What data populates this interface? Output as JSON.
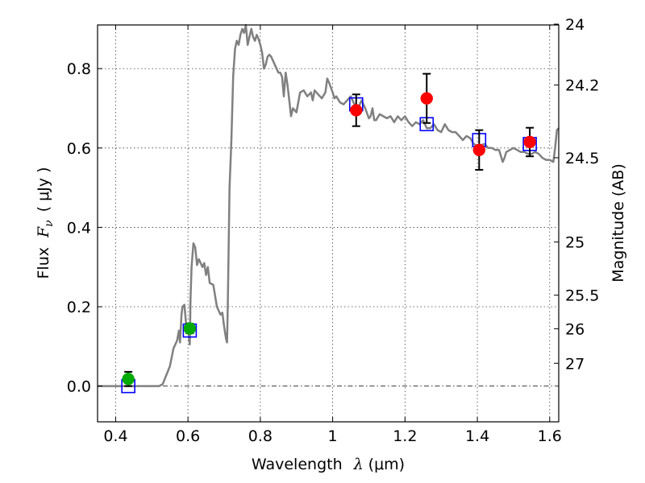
{
  "chart_data": {
    "type": "scatter",
    "title": "",
    "xlabel": {
      "prefix": "Wavelength",
      "symbol": "λ",
      "unit": "(μm)"
    },
    "ylabel": {
      "prefix": "Flux",
      "symbol": "F",
      "subscript": "ν",
      "unit": "( μJy )"
    },
    "y2label": "Magnitude (AB)",
    "xlim": [
      0.35,
      1.625
    ],
    "ylim": [
      -0.09,
      0.91
    ],
    "grid": true,
    "x_ticks": [
      {
        "value": 0.4,
        "label": "0.4"
      },
      {
        "value": 0.6,
        "label": "0.6"
      },
      {
        "value": 0.8,
        "label": "0.8"
      },
      {
        "value": 1.0,
        "label": "1"
      },
      {
        "value": 1.2,
        "label": "1.2"
      },
      {
        "value": 1.4,
        "label": "1.4"
      },
      {
        "value": 1.6,
        "label": "1.6"
      }
    ],
    "y_ticks": [
      {
        "value": 0.0,
        "label": "0.0"
      },
      {
        "value": 0.2,
        "label": "0.2"
      },
      {
        "value": 0.4,
        "label": "0.4"
      },
      {
        "value": 0.6,
        "label": "0.6"
      },
      {
        "value": 0.8,
        "label": "0.8"
      }
    ],
    "y2_ticks": [
      {
        "value": 24,
        "label": "24"
      },
      {
        "value": 24.2,
        "label": "24.2"
      },
      {
        "value": 24.5,
        "label": "24.5"
      },
      {
        "value": 25,
        "label": "25"
      },
      {
        "value": 25.5,
        "label": "25.5"
      },
      {
        "value": 26,
        "label": "26"
      },
      {
        "value": 27,
        "label": "27"
      }
    ],
    "series": [
      {
        "kind": "line",
        "color": "#808080",
        "points": [
          [
            0.35,
            0.0
          ],
          [
            0.52,
            0.0
          ],
          [
            0.53,
            0.005
          ],
          [
            0.55,
            0.05
          ],
          [
            0.56,
            0.095
          ],
          [
            0.57,
            0.115
          ],
          [
            0.575,
            0.14
          ],
          [
            0.578,
            0.11
          ],
          [
            0.582,
            0.18
          ],
          [
            0.585,
            0.2
          ],
          [
            0.59,
            0.205
          ],
          [
            0.595,
            0.155
          ],
          [
            0.6,
            0.15
          ],
          [
            0.603,
            0.12
          ],
          [
            0.605,
            0.105
          ],
          [
            0.607,
            0.22
          ],
          [
            0.61,
            0.3
          ],
          [
            0.615,
            0.36
          ],
          [
            0.62,
            0.35
          ],
          [
            0.625,
            0.305
          ],
          [
            0.63,
            0.32
          ],
          [
            0.64,
            0.3
          ],
          [
            0.645,
            0.31
          ],
          [
            0.65,
            0.28
          ],
          [
            0.655,
            0.3
          ],
          [
            0.66,
            0.26
          ],
          [
            0.67,
            0.255
          ],
          [
            0.68,
            0.2
          ],
          [
            0.69,
            0.18
          ],
          [
            0.695,
            0.185
          ],
          [
            0.7,
            0.15
          ],
          [
            0.705,
            0.12
          ],
          [
            0.708,
            0.11
          ],
          [
            0.71,
            0.2
          ],
          [
            0.715,
            0.5
          ],
          [
            0.72,
            0.62
          ],
          [
            0.725,
            0.78
          ],
          [
            0.73,
            0.85
          ],
          [
            0.735,
            0.87
          ],
          [
            0.74,
            0.86
          ],
          [
            0.745,
            0.885
          ],
          [
            0.75,
            0.9
          ],
          [
            0.755,
            0.89
          ],
          [
            0.76,
            0.91
          ],
          [
            0.765,
            0.86
          ],
          [
            0.77,
            0.88
          ],
          [
            0.775,
            0.9
          ],
          [
            0.78,
            0.88
          ],
          [
            0.785,
            0.87
          ],
          [
            0.79,
            0.885
          ],
          [
            0.795,
            0.875
          ],
          [
            0.8,
            0.86
          ],
          [
            0.805,
            0.84
          ],
          [
            0.81,
            0.8
          ],
          [
            0.815,
            0.81
          ],
          [
            0.82,
            0.83
          ],
          [
            0.825,
            0.835
          ],
          [
            0.83,
            0.83
          ],
          [
            0.84,
            0.81
          ],
          [
            0.85,
            0.79
          ],
          [
            0.855,
            0.79
          ],
          [
            0.86,
            0.78
          ],
          [
            0.865,
            0.73
          ],
          [
            0.87,
            0.79
          ],
          [
            0.875,
            0.76
          ],
          [
            0.88,
            0.72
          ],
          [
            0.885,
            0.68
          ],
          [
            0.89,
            0.7
          ],
          [
            0.9,
            0.69
          ],
          [
            0.91,
            0.74
          ],
          [
            0.92,
            0.745
          ],
          [
            0.93,
            0.73
          ],
          [
            0.94,
            0.74
          ],
          [
            0.945,
            0.72
          ],
          [
            0.95,
            0.745
          ],
          [
            0.96,
            0.735
          ],
          [
            0.97,
            0.725
          ],
          [
            0.98,
            0.74
          ],
          [
            0.985,
            0.775
          ],
          [
            0.99,
            0.765
          ],
          [
            1.0,
            0.74
          ],
          [
            1.005,
            0.725
          ],
          [
            1.01,
            0.73
          ],
          [
            1.02,
            0.715
          ],
          [
            1.03,
            0.71
          ],
          [
            1.04,
            0.72
          ],
          [
            1.05,
            0.73
          ],
          [
            1.06,
            0.71
          ],
          [
            1.065,
            0.695
          ],
          [
            1.07,
            0.7
          ],
          [
            1.08,
            0.72
          ],
          [
            1.09,
            0.7
          ],
          [
            1.1,
            0.675
          ],
          [
            1.105,
            0.68
          ],
          [
            1.11,
            0.7
          ],
          [
            1.115,
            0.67
          ],
          [
            1.12,
            0.67
          ],
          [
            1.13,
            0.685
          ],
          [
            1.14,
            0.68
          ],
          [
            1.15,
            0.675
          ],
          [
            1.16,
            0.68
          ],
          [
            1.17,
            0.665
          ],
          [
            1.18,
            0.68
          ],
          [
            1.19,
            0.67
          ],
          [
            1.2,
            0.68
          ],
          [
            1.21,
            0.665
          ],
          [
            1.22,
            0.655
          ],
          [
            1.23,
            0.665
          ],
          [
            1.24,
            0.66
          ],
          [
            1.25,
            0.67
          ],
          [
            1.26,
            0.65
          ],
          [
            1.27,
            0.65
          ],
          [
            1.28,
            0.66
          ],
          [
            1.29,
            0.645
          ],
          [
            1.3,
            0.64
          ],
          [
            1.31,
            0.66
          ],
          [
            1.32,
            0.645
          ],
          [
            1.33,
            0.64
          ],
          [
            1.34,
            0.64
          ],
          [
            1.35,
            0.63
          ],
          [
            1.36,
            0.62
          ],
          [
            1.37,
            0.63
          ],
          [
            1.38,
            0.625
          ],
          [
            1.39,
            0.61
          ],
          [
            1.4,
            0.605
          ],
          [
            1.42,
            0.61
          ],
          [
            1.43,
            0.6
          ],
          [
            1.44,
            0.6
          ],
          [
            1.45,
            0.595
          ],
          [
            1.46,
            0.595
          ],
          [
            1.47,
            0.565
          ],
          [
            1.475,
            0.575
          ],
          [
            1.48,
            0.59
          ],
          [
            1.49,
            0.595
          ],
          [
            1.5,
            0.6
          ],
          [
            1.51,
            0.595
          ],
          [
            1.52,
            0.59
          ],
          [
            1.53,
            0.59
          ],
          [
            1.54,
            0.585
          ],
          [
            1.55,
            0.585
          ],
          [
            1.56,
            0.59
          ],
          [
            1.57,
            0.585
          ],
          [
            1.58,
            0.575
          ],
          [
            1.59,
            0.57
          ],
          [
            1.6,
            0.57
          ],
          [
            1.61,
            0.565
          ],
          [
            1.615,
            0.6
          ],
          [
            1.62,
            0.645
          ],
          [
            1.625,
            0.65
          ]
        ]
      },
      {
        "kind": "square",
        "color": "#0000ff",
        "points": [
          [
            0.435,
            0.0
          ],
          [
            0.605,
            0.14
          ],
          [
            1.065,
            0.71
          ],
          [
            1.26,
            0.66
          ],
          [
            1.405,
            0.62
          ],
          [
            1.545,
            0.61
          ]
        ]
      },
      {
        "kind": "circle",
        "color": "#00aa00",
        "points": [
          {
            "x": 0.435,
            "y": 0.018,
            "yerr": 0.018
          },
          {
            "x": 0.605,
            "y": 0.145,
            "yerr": 0.012
          }
        ]
      },
      {
        "kind": "circle",
        "color": "#ff0000",
        "points": [
          {
            "x": 1.065,
            "y": 0.695,
            "yerr": 0.04
          },
          {
            "x": 1.26,
            "y": 0.725,
            "yerr": 0.062
          },
          {
            "x": 1.405,
            "y": 0.595,
            "yerr": 0.05
          },
          {
            "x": 1.545,
            "y": 0.615,
            "yerr": 0.036
          }
        ]
      }
    ]
  }
}
